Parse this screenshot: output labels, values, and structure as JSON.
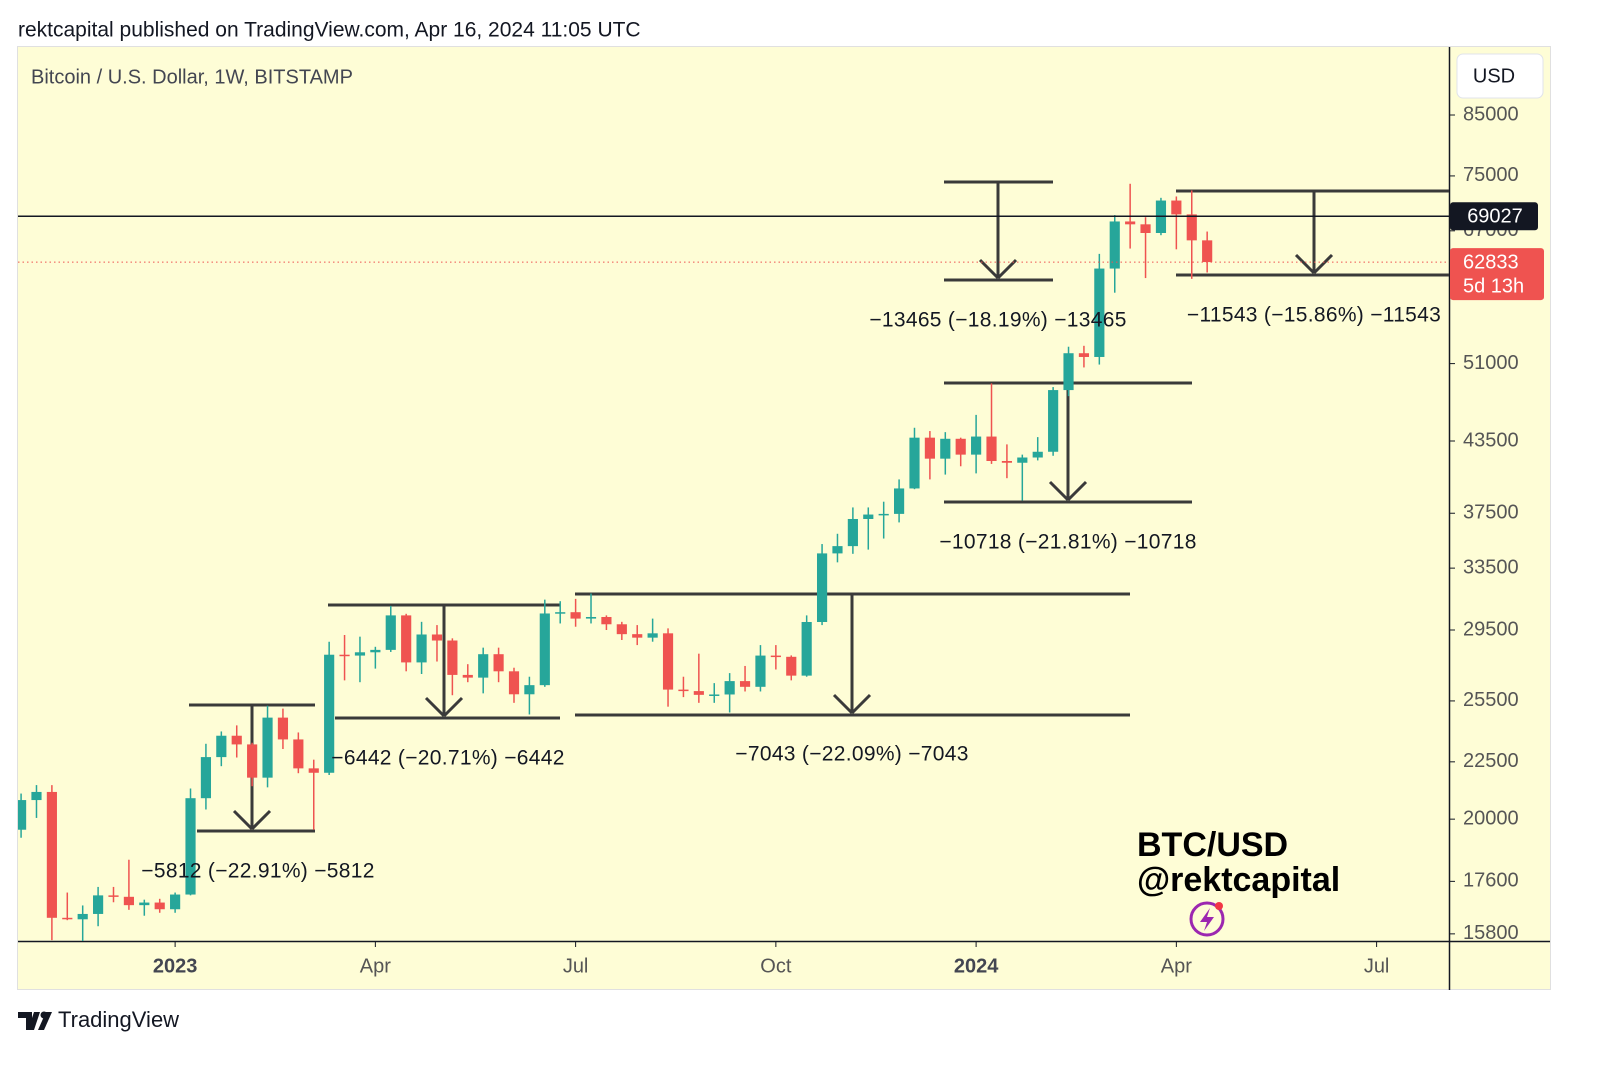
{
  "header": "rektcapital published on TradingView.com, Apr 16, 2024 11:05 UTC",
  "footer": "TradingView",
  "chart_data": {
    "type": "candlestick",
    "title": "Bitcoin / U.S. Dollar, 1W, BITSTAMP",
    "currency": "USD",
    "watermark": [
      "BTC/USD",
      "@rektcapital"
    ],
    "x": [
      -10,
      -9,
      -8,
      -7,
      -6,
      -5,
      -4,
      -3,
      -2,
      -1,
      0,
      1,
      2,
      3,
      4,
      5,
      6,
      7,
      8,
      9,
      10,
      11,
      12,
      13,
      14,
      15,
      16,
      17,
      18,
      19,
      20,
      21,
      22,
      23,
      24,
      25,
      26,
      27,
      28,
      29,
      30,
      31,
      32,
      33,
      34,
      35,
      36,
      37,
      38,
      39,
      40,
      41,
      42,
      43,
      44,
      45,
      46,
      47,
      48,
      49,
      50,
      51,
      52,
      53,
      54,
      55,
      56,
      57,
      58,
      59,
      60,
      61,
      62,
      63,
      64,
      65,
      66,
      67
    ],
    "open": [
      19570,
      20800,
      21150,
      16330,
      16280,
      16460,
      17100,
      17050,
      16760,
      16850,
      16620,
      17130,
      20880,
      22720,
      23740,
      23320,
      21780,
      24640,
      23560,
      22200,
      22000,
      28040,
      27990,
      28180,
      28320,
      30400,
      27600,
      29230,
      28870,
      26900,
      26750,
      28070,
      27100,
      25850,
      26340,
      30520,
      30600,
      30200,
      30300,
      29850,
      29250,
      29040,
      29300,
      26100,
      26020,
      25820,
      25840,
      26560,
      26250,
      27990,
      27920,
      26860,
      29990,
      34530,
      35050,
      37060,
      37400,
      37450,
      39460,
      43800,
      41950,
      43700,
      42300,
      43900,
      41750,
      41600,
      42050,
      42550,
      48300,
      52100,
      51700,
      62000,
      68300,
      67900,
      66700,
      71300,
      69300,
      65700
    ],
    "high": [
      21080,
      21450,
      21450,
      17200,
      16750,
      17400,
      17400,
      18400,
      16950,
      16980,
      17200,
      21300,
      23350,
      23950,
      24250,
      23400,
      25250,
      25100,
      23900,
      22600,
      28800,
      29200,
      29100,
      28500,
      31000,
      30500,
      30000,
      29800,
      29000,
      27500,
      28450,
      28450,
      27300,
      26800,
      31400,
      31300,
      31450,
      31800,
      30400,
      30000,
      29800,
      30200,
      29600,
      26800,
      28100,
      26450,
      27000,
      27400,
      28600,
      28600,
      28000,
      30400,
      35200,
      35950,
      37950,
      37950,
      38400,
      40200,
      44700,
      44400,
      44300,
      43800,
      45900,
      48970,
      43200,
      42300,
      43850,
      48600,
      52800,
      52900,
      63900,
      69200,
      73800,
      68900,
      71700,
      71900,
      72800,
      66900
    ],
    "low": [
      19250,
      20050,
      15600,
      16250,
      15500,
      16050,
      16860,
      16600,
      16400,
      16500,
      16500,
      17100,
      20400,
      22300,
      22700,
      21400,
      21350,
      23100,
      21980,
      19570,
      21900,
      26600,
      26500,
      27250,
      28200,
      27100,
      26950,
      27650,
      25800,
      26500,
      25900,
      26500,
      25400,
      24800,
      26250,
      29900,
      29700,
      29900,
      29500,
      28900,
      28600,
      28800,
      25200,
      25700,
      25400,
      25400,
      24900,
      26000,
      26000,
      27200,
      26600,
      26800,
      29800,
      33900,
      34500,
      34800,
      35600,
      36800,
      39400,
      40200,
      40600,
      41300,
      40700,
      41500,
      40300,
      38500,
      41800,
      42200,
      47700,
      50600,
      50900,
      59000,
      64600,
      60800,
      66400,
      64500,
      60700,
      61500
    ],
    "close": [
      20800,
      21150,
      16330,
      16280,
      16460,
      17100,
      17050,
      16760,
      16850,
      16620,
      17130,
      20880,
      22720,
      23740,
      23320,
      21780,
      24640,
      23560,
      22200,
      22000,
      28040,
      27990,
      28180,
      28320,
      30400,
      27600,
      29230,
      28870,
      26900,
      26750,
      28070,
      27100,
      25850,
      26340,
      30520,
      30600,
      30200,
      30300,
      29850,
      29250,
      29040,
      29300,
      26100,
      26020,
      25820,
      25840,
      26560,
      26250,
      27990,
      27920,
      26860,
      29990,
      34530,
      35050,
      37060,
      37400,
      37450,
      39460,
      43800,
      41950,
      43700,
      42300,
      43900,
      41750,
      41600,
      42050,
      42550,
      48300,
      52100,
      51700,
      62000,
      68300,
      67900,
      66700,
      71300,
      69300,
      65700,
      62833
    ],
    "up_color": "#26a69a",
    "down_color": "#ef5350",
    "log_scale": true,
    "ylim": [
      15570,
      97750
    ],
    "yticks": [
      15800,
      17600,
      20000,
      22500,
      25500,
      29500,
      33500,
      37500,
      43500,
      51000,
      67000,
      75000,
      85000
    ],
    "xlim": [
      -10.2,
      82.7
    ],
    "xticks": [
      {
        "value": 0,
        "label": "2023"
      },
      {
        "value": 13,
        "label": "Apr"
      },
      {
        "value": 26,
        "label": "Jul"
      },
      {
        "value": 39,
        "label": "Oct"
      },
      {
        "value": 52,
        "label": "2024"
      },
      {
        "value": 65,
        "label": "Apr"
      },
      {
        "value": 78,
        "label": "Jul"
      }
    ],
    "horizontal_line": {
      "value": 69027,
      "color": "#131722"
    },
    "last_price": {
      "value": 62833,
      "countdown": "5d 13h",
      "color": "#ef5350"
    },
    "annotations": [
      "−5812 (−22.91%) −5812",
      "−6442 (−20.71%) −6442",
      "−7043 (−22.09%) −7043",
      "−10718 (−21.81%) −10718",
      "−13465 (−18.19%) −13465",
      "−11543 (−15.86%) −11543"
    ]
  }
}
